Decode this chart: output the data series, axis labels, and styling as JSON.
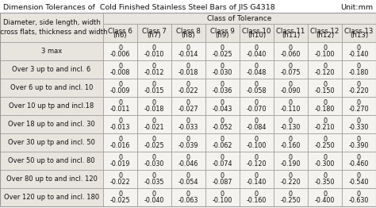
{
  "title": "Dimension Tolerances of  Cold Finished Stainless Steel Bars of JIS G4318",
  "unit": "Unit:mm",
  "row_labels": [
    "3 max",
    "Over 3 up to and incl. 6",
    "Over 6 up to and incl. 10",
    "Over 10 up tp and incl.18",
    "Over 18 up to and incl. 30",
    "Over 30 up tp and incl. 50",
    "Over 50 up to and incl. 80",
    "Over 80 up to and incl. 120",
    "Over 120 up to and incl. 180"
  ],
  "class_headers": [
    [
      "Class 6",
      "(h6)"
    ],
    [
      "Class 7",
      "(h7)"
    ],
    [
      "Class 8",
      "(h8)"
    ],
    [
      "Class 9",
      "(h9)"
    ],
    [
      "Class 10",
      "(h10)"
    ],
    [
      "Class 11",
      "(h11)"
    ],
    [
      "Class 12",
      "(h12)"
    ],
    [
      "Class 13",
      "(h13)"
    ]
  ],
  "data": [
    [
      "0",
      "0",
      "0",
      "0",
      "0",
      "0",
      "0",
      "0"
    ],
    [
      "-0.006",
      "-0.010",
      "-0.014",
      "-0.025",
      "-0.040",
      "-0.060",
      "-0.100",
      "-0.140"
    ],
    [
      "0",
      "0",
      "0",
      "0",
      "0",
      "0",
      "0",
      "0"
    ],
    [
      "-0.008",
      "-0.012",
      "-0.018",
      "-0.030",
      "-0.048",
      "-0.075",
      "-0.120",
      "-0.180"
    ],
    [
      "0",
      "0",
      "0",
      "0",
      "0",
      "0",
      "0",
      "0"
    ],
    [
      "-0.009",
      "-0.015",
      "-0.022",
      "-0.036",
      "-0.058",
      "-0.090",
      "-0.150",
      "-0.220"
    ],
    [
      "0",
      "0",
      "0",
      "0",
      "0",
      "0",
      "0",
      "0"
    ],
    [
      "-0.011",
      "-0.018",
      "-0.027",
      "-0.043",
      "-0.070",
      "-0.110",
      "-0.180",
      "-0.270"
    ],
    [
      "0",
      "0",
      "0",
      "0",
      "0",
      "0",
      "0",
      "0"
    ],
    [
      "-0.013",
      "-0.021",
      "-0.033",
      "-0.052",
      "-0.084",
      "-0.130",
      "-0.210",
      "-0.330"
    ],
    [
      "0",
      "0",
      "0",
      "0",
      "0",
      "0",
      "0",
      "0"
    ],
    [
      "-0.016",
      "-0.025",
      "-0.039",
      "-0.062",
      "-0.100",
      "-0.160",
      "-0.250",
      "-0.390"
    ],
    [
      "0",
      "0",
      "0",
      "0",
      "0",
      "0",
      "0",
      "0"
    ],
    [
      "-0.019",
      "-0.030",
      "-0.046",
      "-0.074",
      "-0.120",
      "-0.190",
      "-0.300",
      "-0.460"
    ],
    [
      "0",
      "0",
      "0",
      "0",
      "0",
      "0",
      "0",
      "0"
    ],
    [
      "-0.022",
      "-0.035",
      "-0.054",
      "-0.087",
      "-0.140",
      "-0.220",
      "-0.350",
      "-0.540"
    ],
    [
      "0",
      "0",
      "0",
      "0",
      "0",
      "0",
      "0",
      "0"
    ],
    [
      "-0.025",
      "-0.040",
      "-0.063",
      "-0.100",
      "-0.160",
      "-0.250",
      "-0.400",
      "-0.630"
    ]
  ],
  "bg_color": "#f5f3ef",
  "header_bg": "#e8e5df",
  "border_color": "#999999",
  "title_fontsize": 6.8,
  "header_fontsize": 6.2,
  "cell_fontsize": 5.8,
  "row_label_fontsize": 6.0
}
